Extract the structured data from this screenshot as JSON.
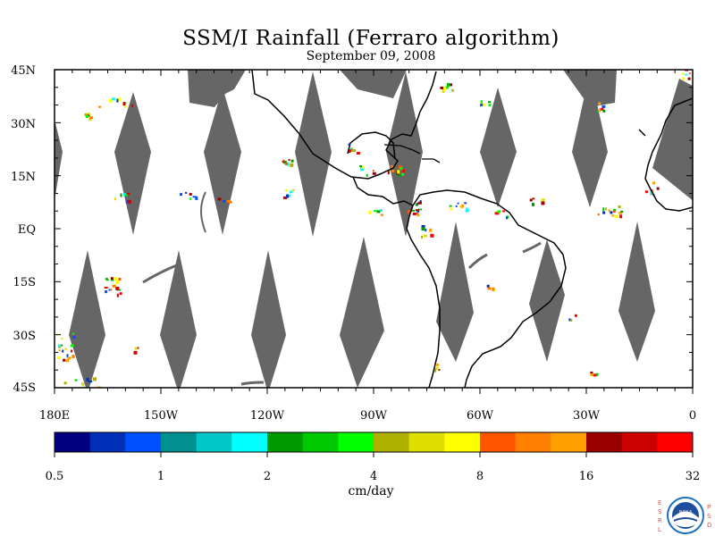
{
  "title": "SSM/I Rainfall (Ferraro algorithm)",
  "subtitle": "September 09, 2008",
  "lat_labels": [
    "45N",
    "30N",
    "15N",
    "EQ",
    "15S",
    "30S",
    "45S"
  ],
  "lon_labels": [
    "180E",
    "150W",
    "120W",
    "90W",
    "60W",
    "30W",
    "0"
  ],
  "colors": {
    "missing_swath_gap": "#666666",
    "coastline": "#000000",
    "colorbar": [
      "#000080",
      "#0030b8",
      "#0050ff",
      "#009090",
      "#00c8c8",
      "#00ffff",
      "#009900",
      "#00c800",
      "#00ff00",
      "#b0b000",
      "#dede00",
      "#ffff00",
      "#ff5500",
      "#ff8000",
      "#ffa000",
      "#990000",
      "#cc0000",
      "#ff0000"
    ]
  },
  "colorbar": {
    "tick_labels": [
      "0.5",
      "1",
      "2",
      "4",
      "8",
      "16",
      "32"
    ],
    "units": "cm/day"
  },
  "logo": {
    "left_letters": [
      "E",
      "S",
      "R",
      "L"
    ],
    "right_letters": [
      "P",
      "S",
      "D"
    ],
    "center_text": "NOAA"
  }
}
